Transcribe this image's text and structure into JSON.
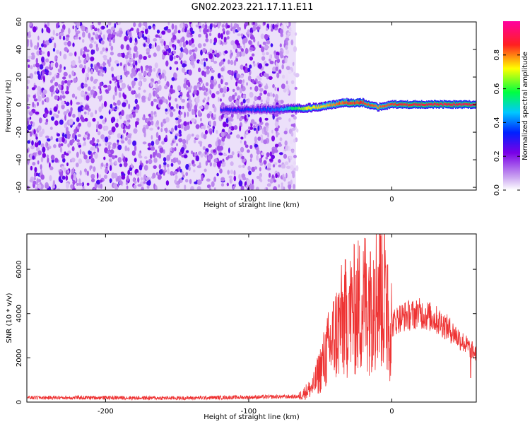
{
  "title": "GN02.2023.221.17.11.E11",
  "chart_data": [
    {
      "type": "heatmap",
      "title": "GN02.2023.221.17.11.E11",
      "xlabel": "Height of straight line (km)",
      "ylabel": "Frequency (Hz)",
      "xlim": [
        -255,
        59
      ],
      "ylim": [
        -62,
        60
      ],
      "xticks": [
        -200,
        -100,
        0
      ],
      "yticks": [
        -60,
        -40,
        -20,
        0,
        20,
        40,
        60
      ],
      "colorbar": {
        "label": "Normalized spectral amplitude",
        "range": [
          0,
          1
        ],
        "ticks": [
          0.0,
          0.2,
          0.4,
          0.6,
          0.8
        ],
        "colors": [
          "#ffffff",
          "#c8a0f0",
          "#7a00e6",
          "#0020ff",
          "#00c8ff",
          "#00ff40",
          "#ffff00",
          "#ff2020",
          "#ff00a0"
        ]
      },
      "signal_band": {
        "description_free": true,
        "x": [
          -120,
          -100,
          -80,
          -70,
          -60,
          -50,
          -40,
          -30,
          -20,
          -10,
          0,
          20,
          59
        ],
        "center_frequency": [
          -4,
          -4,
          -4,
          -3,
          -3,
          -2,
          0,
          1,
          1,
          -2,
          0,
          0,
          0
        ],
        "amplitude": [
          0.3,
          0.35,
          0.4,
          0.55,
          0.7,
          0.75,
          0.8,
          0.85,
          0.85,
          0.8,
          0.85,
          0.9,
          0.9
        ]
      },
      "noise_region_x": [
        -255,
        -67
      ]
    },
    {
      "type": "line",
      "xlabel": "Height of straight line (km)",
      "ylabel": "SNR (10 * v/v)",
      "xlim": [
        -255,
        59
      ],
      "ylim": [
        0,
        7600
      ],
      "xticks": [
        -200,
        -100,
        0
      ],
      "yticks": [
        0,
        2000,
        4000,
        6000
      ],
      "color": "#ee3333",
      "series_shape": {
        "x": [
          -255,
          -200,
          -150,
          -100,
          -65,
          -55,
          -50,
          -45,
          -40,
          -35,
          -30,
          -25,
          -20,
          -15,
          -10,
          -8,
          -5,
          -3,
          0,
          5,
          10,
          15,
          20,
          25,
          30,
          35,
          40,
          45,
          50,
          55,
          59
        ],
        "y": [
          200,
          200,
          180,
          220,
          250,
          700,
          1500,
          2300,
          3000,
          3600,
          3900,
          4200,
          4500,
          4800,
          5000,
          5600,
          4200,
          3700,
          3500,
          3800,
          3900,
          3950,
          4000,
          3900,
          3750,
          3550,
          3300,
          3000,
          2700,
          2400,
          2150
        ],
        "peaks": [
          [
            -30,
            4900
          ],
          [
            -15,
            6800
          ],
          [
            -12,
            6000
          ],
          [
            -5,
            7600
          ],
          [
            -3,
            6200
          ],
          [
            18,
            4400
          ],
          [
            55,
            1100
          ]
        ]
      }
    }
  ]
}
